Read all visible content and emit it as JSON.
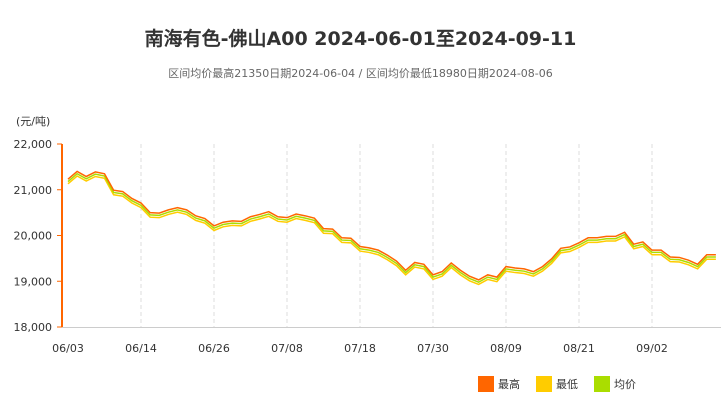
{
  "chart_data": {
    "type": "line",
    "title": "南海有色-佛山A00 2024-06-01至2024-09-11",
    "subtitle": "区间均价最高21350日期2024-06-04 / 区间均价最低18980日期2024-08-06",
    "ylabel": "(元/吨)",
    "ylim": [
      18000,
      22000
    ],
    "yticks": [
      "18,000",
      "19,000",
      "20,000",
      "21,000",
      "22,000"
    ],
    "ytick_values": [
      18000,
      19000,
      20000,
      21000,
      22000
    ],
    "xtick_labels": [
      "06/03",
      "06/14",
      "06/26",
      "07/08",
      "07/18",
      "07/30",
      "08/09",
      "08/21",
      "09/02"
    ],
    "grid": "vertical dashed",
    "legend_position": "bottom-right",
    "x": [
      "06/03",
      "06/04",
      "06/05",
      "06/06",
      "06/07",
      "06/11",
      "06/12",
      "06/13",
      "06/14",
      "06/17",
      "06/18",
      "06/19",
      "06/20",
      "06/21",
      "06/24",
      "06/25",
      "06/26",
      "06/27",
      "06/28",
      "07/01",
      "07/02",
      "07/03",
      "07/04",
      "07/05",
      "07/08",
      "07/09",
      "07/10",
      "07/11",
      "07/12",
      "07/15",
      "07/16",
      "07/17",
      "07/18",
      "07/19",
      "07/22",
      "07/23",
      "07/24",
      "07/25",
      "07/26",
      "07/29",
      "07/30",
      "07/31",
      "08/01",
      "08/02",
      "08/05",
      "08/06",
      "08/07",
      "08/08",
      "08/09",
      "08/12",
      "08/13",
      "08/14",
      "08/15",
      "08/16",
      "08/19",
      "08/20",
      "08/21",
      "08/22",
      "08/23",
      "08/26",
      "08/27",
      "08/28",
      "08/29",
      "08/30",
      "09/02",
      "09/03",
      "09/04",
      "09/05",
      "09/06",
      "09/09",
      "09/10",
      "09/11"
    ],
    "series": [
      {
        "name": "最高",
        "color": "#ff6600",
        "values": [
          21230,
          21400,
          21290,
          21390,
          21350,
          20990,
          20960,
          20810,
          20710,
          20500,
          20490,
          20560,
          20610,
          20560,
          20430,
          20370,
          20210,
          20290,
          20320,
          20310,
          20410,
          20460,
          20520,
          20410,
          20390,
          20470,
          20430,
          20380,
          20150,
          20140,
          19950,
          19940,
          19760,
          19730,
          19680,
          19570,
          19440,
          19240,
          19410,
          19370,
          19140,
          19210,
          19400,
          19240,
          19110,
          19030,
          19140,
          19090,
          19320,
          19290,
          19270,
          19210,
          19320,
          19490,
          19720,
          19750,
          19840,
          19950,
          19950,
          19980,
          19980,
          20070,
          19810,
          19860,
          19680,
          19680,
          19530,
          19520,
          19460,
          19370,
          19580,
          19580
        ]
      },
      {
        "name": "最低",
        "color": "#ffcc00",
        "values": [
          21130,
          21300,
          21190,
          21290,
          21250,
          20890,
          20860,
          20710,
          20610,
          20400,
          20390,
          20460,
          20510,
          20460,
          20330,
          20270,
          20110,
          20190,
          20220,
          20210,
          20310,
          20360,
          20420,
          20310,
          20290,
          20370,
          20330,
          20280,
          20050,
          20040,
          19850,
          19840,
          19660,
          19630,
          19580,
          19470,
          19340,
          19140,
          19310,
          19270,
          19040,
          19110,
          19300,
          19140,
          19010,
          18930,
          19040,
          18990,
          19220,
          19190,
          19170,
          19110,
          19220,
          19390,
          19620,
          19650,
          19740,
          19850,
          19850,
          19880,
          19880,
          19970,
          19710,
          19760,
          19580,
          19580,
          19430,
          19420,
          19360,
          19270,
          19480,
          19480
        ]
      },
      {
        "name": "均价",
        "color": "#aadd00",
        "values": [
          21180,
          21350,
          21240,
          21340,
          21300,
          20940,
          20910,
          20760,
          20660,
          20450,
          20440,
          20510,
          20560,
          20510,
          20380,
          20320,
          20160,
          20240,
          20270,
          20260,
          20360,
          20410,
          20470,
          20360,
          20340,
          20420,
          20380,
          20330,
          20100,
          20090,
          19900,
          19890,
          19710,
          19680,
          19630,
          19520,
          19390,
          19190,
          19360,
          19320,
          19090,
          19160,
          19350,
          19190,
          19060,
          18980,
          19090,
          19040,
          19270,
          19240,
          19220,
          19160,
          19270,
          19440,
          19670,
          19700,
          19790,
          19900,
          19900,
          19930,
          19930,
          20020,
          19760,
          19810,
          19630,
          19630,
          19480,
          19470,
          19410,
          19320,
          19530,
          19530
        ]
      }
    ]
  }
}
